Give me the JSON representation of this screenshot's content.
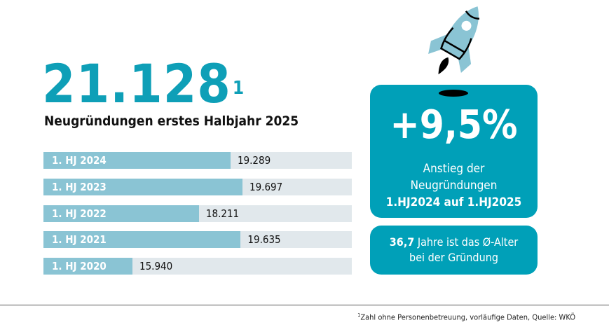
{
  "colors": {
    "accent": "#0e9fb7",
    "bar": "#8ac4d4",
    "track": "#e1e8ec",
    "box": "#00a0b8"
  },
  "headline": {
    "value": "21.128",
    "footnote_mark": "1",
    "subtitle": "Neugründungen erstes Halbjahr 2025"
  },
  "chart_data": {
    "type": "bar",
    "orientation": "horizontal",
    "categories": [
      "1. HJ 2024",
      "1. HJ 2023",
      "1. HJ 2022",
      "1. HJ 2021",
      "1. HJ 2020"
    ],
    "values": [
      19289,
      19697,
      18211,
      19635,
      15940
    ],
    "value_labels": [
      "19.289",
      "19.697",
      "18.211",
      "19.635",
      "15.940"
    ],
    "xlim": [
      12900,
      23430
    ],
    "grid": false
  },
  "highlight": {
    "value": "+9,5%",
    "line1": "Anstieg der",
    "line2": "Neugründungen",
    "line3": "1.HJ2024 auf 1.HJ2025"
  },
  "age": {
    "value": "36,7",
    "text1": " Jahre ist das Ø-Alter",
    "text2": "bei der Gründung"
  },
  "footnote": {
    "mark": "1",
    "text": "Zahl ohne Personenbetreuung, vorläufige Daten, Quelle: WKÖ"
  },
  "icons": {
    "rocket": "rocket-icon"
  }
}
